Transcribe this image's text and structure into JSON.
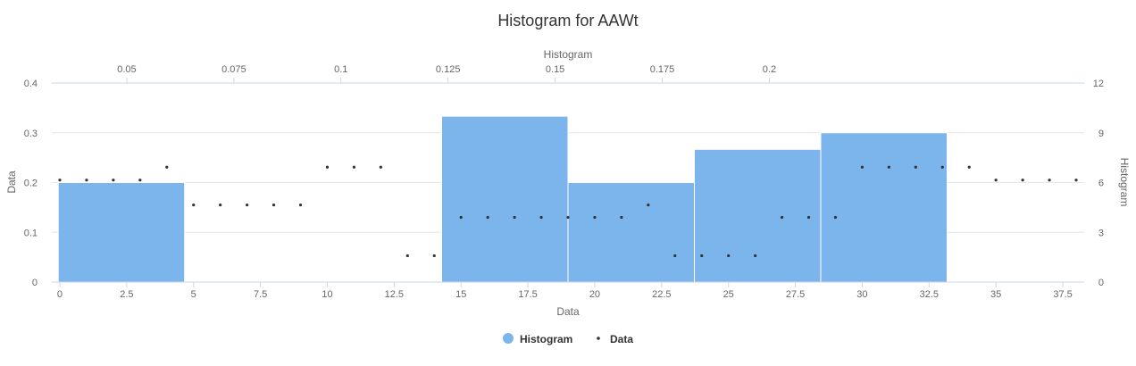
{
  "chart_data": {
    "type": "bar",
    "title": "Histogram for AAWt",
    "colors": {
      "histogram": "#7cb5ec",
      "data": "#333333"
    },
    "x_bottom": {
      "label": "Data",
      "range": [
        -0.3,
        38.3
      ],
      "ticks": [
        "0",
        "2.5",
        "5",
        "7.5",
        "10",
        "12.5",
        "15",
        "17.5",
        "20",
        "22.5",
        "25",
        "27.5",
        "30",
        "32.5",
        "35",
        "37.5"
      ]
    },
    "x_top": {
      "label": "Histogram",
      "range": [
        0.0325,
        0.2735
      ],
      "ticks": [
        "0.05",
        "0.075",
        "0.1",
        "0.125",
        "0.15",
        "0.175",
        "0.2"
      ]
    },
    "y_left": {
      "label": "Data",
      "range": [
        0,
        0.4
      ],
      "ticks": [
        "0",
        "0.1",
        "0.2",
        "0.3",
        "0.4"
      ]
    },
    "y_right": {
      "label": "Histogram",
      "range": [
        0,
        12
      ],
      "ticks": [
        "0",
        "3",
        "6",
        "9",
        "12"
      ]
    },
    "series": [
      {
        "name": "Histogram",
        "type": "column",
        "bins": [
          {
            "from": 0.034,
            "to": 0.0635,
            "count": 6
          },
          {
            "from": 0.1235,
            "to": 0.153,
            "count": 10
          },
          {
            "from": 0.153,
            "to": 0.1825,
            "count": 6
          },
          {
            "from": 0.1825,
            "to": 0.212,
            "count": 8
          },
          {
            "from": 0.212,
            "to": 0.2415,
            "count": 9
          }
        ]
      },
      {
        "name": "Data",
        "type": "scatter",
        "values": [
          0.205,
          0.205,
          0.205,
          0.205,
          0.231,
          0.155,
          0.155,
          0.155,
          0.155,
          0.155,
          0.231,
          0.231,
          0.231,
          0.053,
          0.053,
          0.13,
          0.13,
          0.13,
          0.13,
          0.13,
          0.13,
          0.13,
          0.155,
          0.053,
          0.053,
          0.053,
          0.053,
          0.13,
          0.13,
          0.13,
          0.231,
          0.231,
          0.231,
          0.231,
          0.231,
          0.205,
          0.205,
          0.205,
          0.205
        ]
      }
    ],
    "legend": {
      "placement": "bottom-center"
    }
  }
}
